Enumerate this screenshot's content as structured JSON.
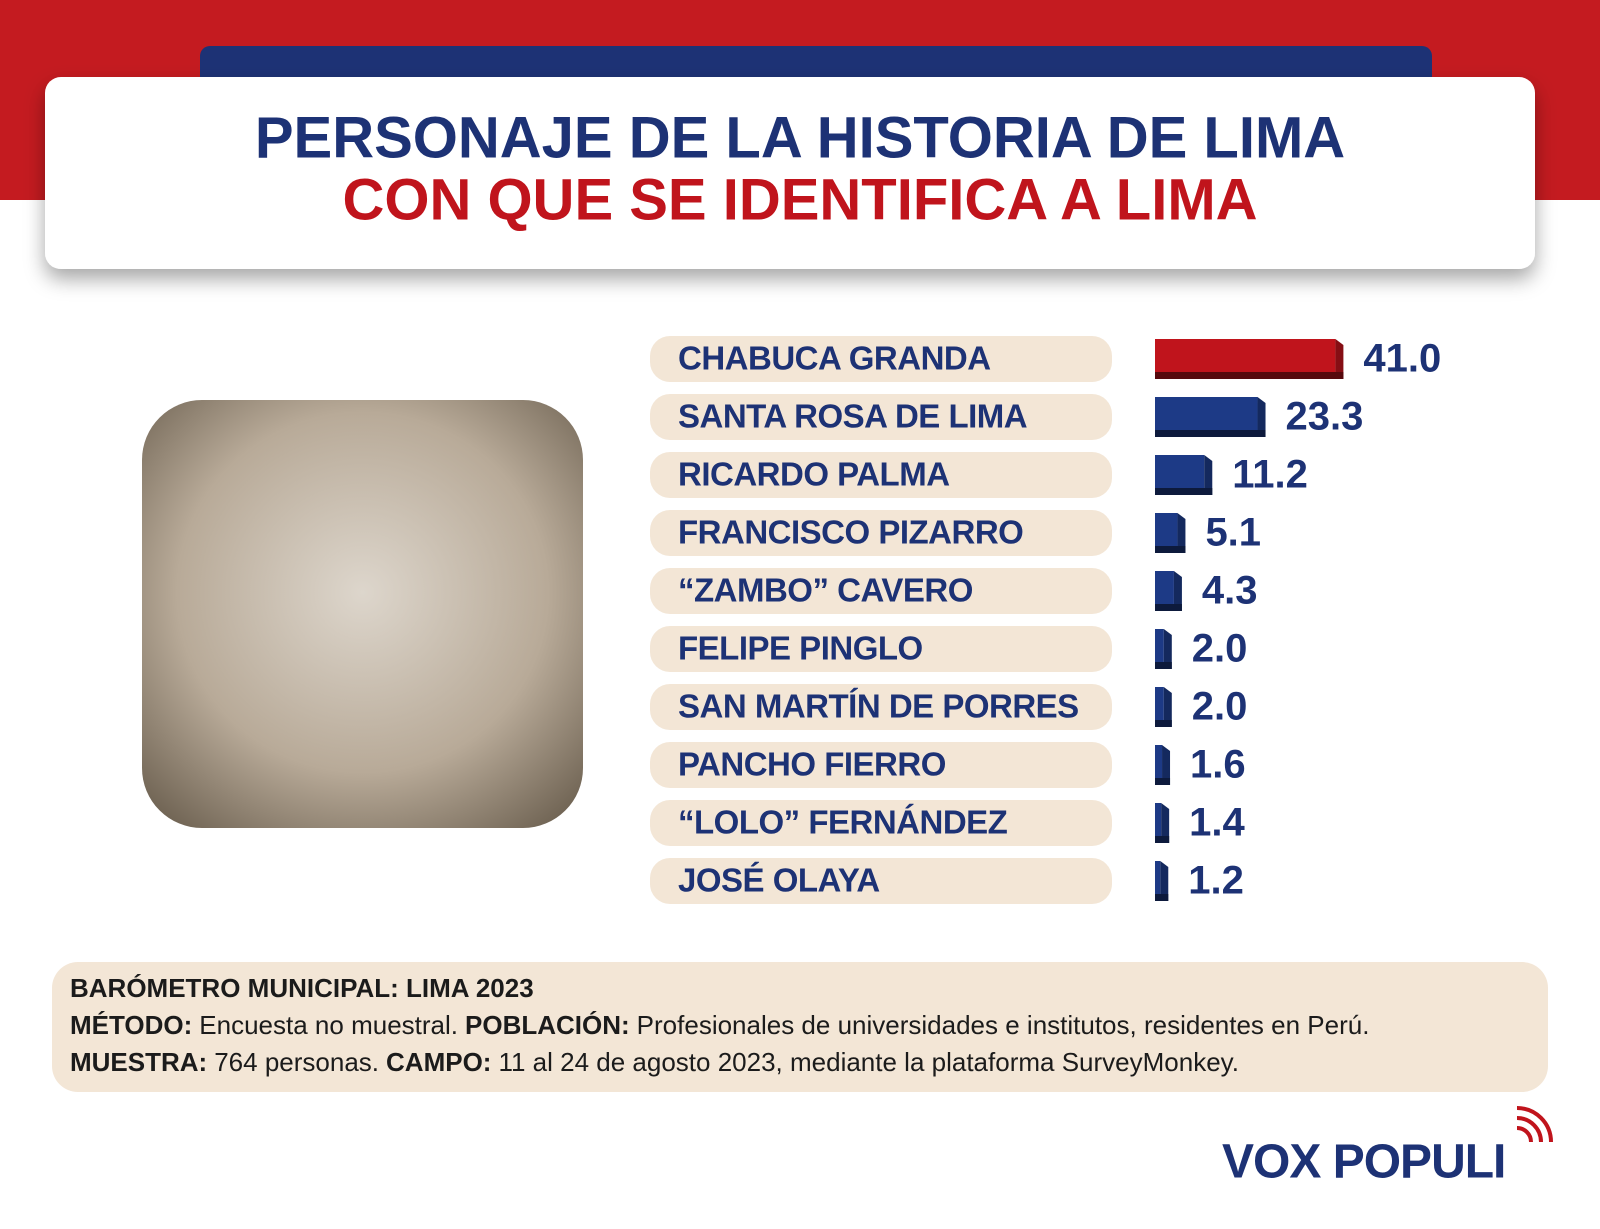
{
  "chart_data": {
    "type": "bar",
    "orientation": "horizontal",
    "title": [
      "PERSONAJE DE LA HISTORIA DE LIMA",
      "CON QUE SE IDENTIFICA A LIMA"
    ],
    "categories": [
      "CHABUCA GRANDA",
      "SANTA ROSA DE LIMA",
      "RICARDO PALMA",
      "FRANCISCO PIZARRO",
      "“ZAMBO” CAVERO",
      "FELIPE PINGLO",
      "SAN MARTÍN DE PORRES",
      "PANCHO FIERRO",
      "“LOLO” FERNÁNDEZ",
      "JOSÉ OLAYA"
    ],
    "values": [
      41.0,
      23.3,
      11.2,
      5.1,
      4.3,
      2.0,
      2.0,
      1.6,
      1.4,
      1.2
    ],
    "value_labels": [
      "41.0",
      "23.3",
      "11.2",
      "5.1",
      "4.3",
      "2.0",
      "2.0",
      "1.6",
      "1.4",
      "1.2"
    ],
    "colors": [
      "#c0141c",
      "#1d3a86",
      "#1d3a86",
      "#1d3a86",
      "#1d3a86",
      "#1d3a86",
      "#1d3a86",
      "#1d3a86",
      "#1d3a86",
      "#1d3a86"
    ]
  },
  "footer": {
    "lines": [
      [
        {
          "text": "BARÓMETRO MUNICIPAL: LIMA 2023",
          "bold": true
        }
      ],
      [
        {
          "text": "MÉTODO:",
          "bold": true
        },
        {
          "text": "Encuesta no muestral."
        },
        {
          "text": "POBLACIÓN:",
          "bold": true
        },
        {
          "text": "Profesionales de universidades e institutos, residentes en Perú."
        }
      ],
      [
        {
          "text": "MUESTRA:",
          "bold": true
        },
        {
          "text": "764 personas."
        },
        {
          "text": "CAMPO:",
          "bold": true
        },
        {
          "text": "11 al 24 de agosto 2023, mediante la plataforma SurveyMonkey."
        }
      ]
    ]
  },
  "logo": "VOX POPULI"
}
